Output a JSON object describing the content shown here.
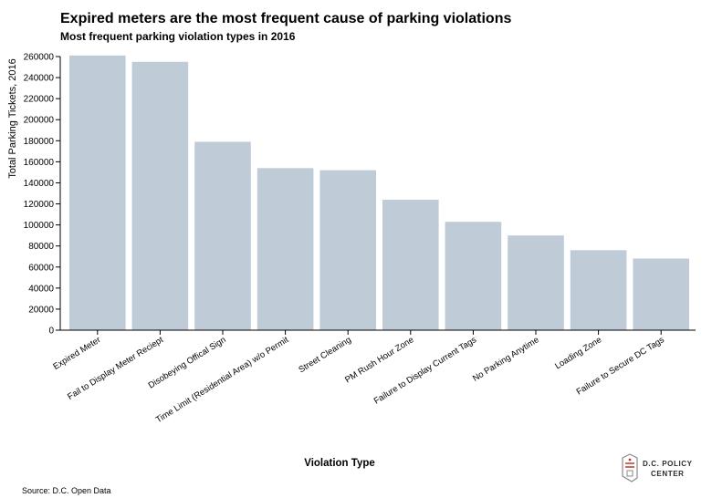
{
  "title": "Expired meters are the most frequent cause of parking violations",
  "subtitle": "Most frequent parking violation types in 2016",
  "source": "Source: D.C. Open Data",
  "logo": {
    "line1": "D.C. POLICY",
    "line2": "CENTER"
  },
  "colors": {
    "bar": "#bfccd8",
    "axis": "#000000",
    "logo_red": "#c0392b",
    "logo_gray": "#8a8a8a"
  },
  "chart_data": {
    "type": "bar",
    "title": "Expired meters are the most frequent cause of parking violations",
    "subtitle": "Most frequent parking violation types in 2016",
    "xlabel": "Violation Type",
    "ylabel": "Total Parking Tickets, 2016",
    "ylim": [
      0,
      260000
    ],
    "yticks": [
      "0",
      "20000",
      "40000",
      "60000",
      "80000",
      "100000",
      "120000",
      "140000",
      "160000",
      "180000",
      "200000",
      "220000",
      "240000",
      "260000"
    ],
    "grid": false,
    "categories": [
      "Expired Meter",
      "Fail to Display Meter Reciept",
      "Disobeying Offical Sign",
      "Time Limit (Residential Area) w/o Permit",
      "Street Cleaning",
      "PM Rush Hour Zone",
      "Failure to Display Current Tags",
      "No Parking Anytime",
      "Loading Zone",
      "Failure to Secure DC Tags"
    ],
    "values": [
      261000,
      255000,
      179000,
      154000,
      152000,
      124000,
      103000,
      90000,
      76000,
      68000
    ]
  }
}
